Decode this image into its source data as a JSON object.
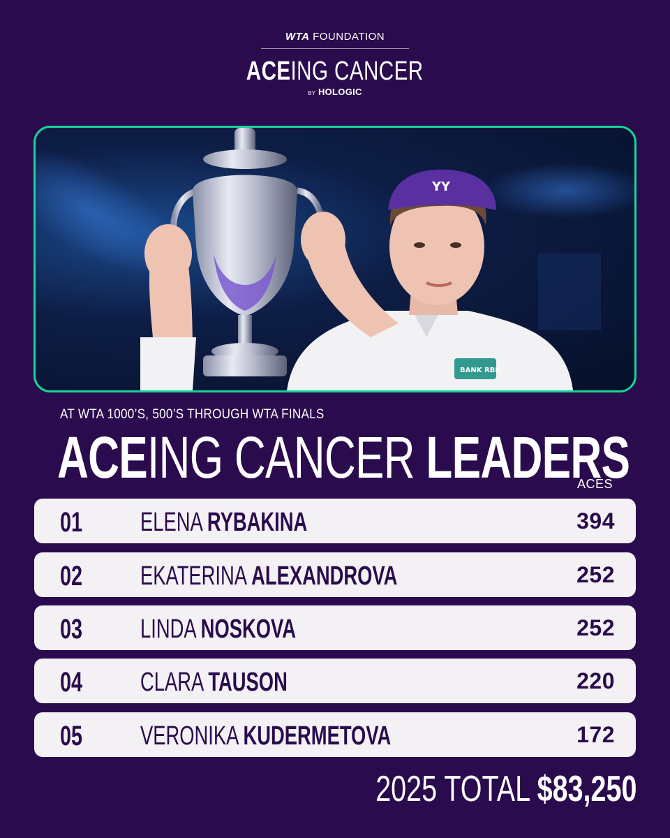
{
  "header": {
    "foundation_brand": "WTA",
    "foundation_word": "FOUNDATION",
    "campaign_bold": "ACE",
    "campaign_rest": "ING CANCER",
    "by": "BY",
    "sponsor": "HOLOGIC"
  },
  "photo": {
    "visor_logo": "YY",
    "shirt_sponsor": "BANK RBK"
  },
  "subtitle": "AT WTA 1000’S, 500’S THROUGH WTA FINALS",
  "title": {
    "bold1": "ACE",
    "rest": "ING CANCER ",
    "bold2": "LEADERS"
  },
  "column_header": "ACES",
  "leaders": [
    {
      "rank": "01",
      "first": "ELENA",
      "last": "RYBAKINA",
      "aces": "394"
    },
    {
      "rank": "02",
      "first": "EKATERINA",
      "last": "ALEXANDROVA",
      "aces": "252"
    },
    {
      "rank": "03",
      "first": "LINDA",
      "last": "NOSKOVA",
      "aces": "252"
    },
    {
      "rank": "04",
      "first": "CLARA",
      "last": "TAUSON",
      "aces": "220"
    },
    {
      "rank": "05",
      "first": "VERONIKA",
      "last": "KUDERMETOVA",
      "aces": "172"
    }
  ],
  "total": {
    "label": "2025 TOTAL",
    "amount": "$83,250"
  },
  "colors": {
    "background": "#2a0b4d",
    "row_background": "#f3f1f4",
    "photo_border": "#18d39a"
  }
}
